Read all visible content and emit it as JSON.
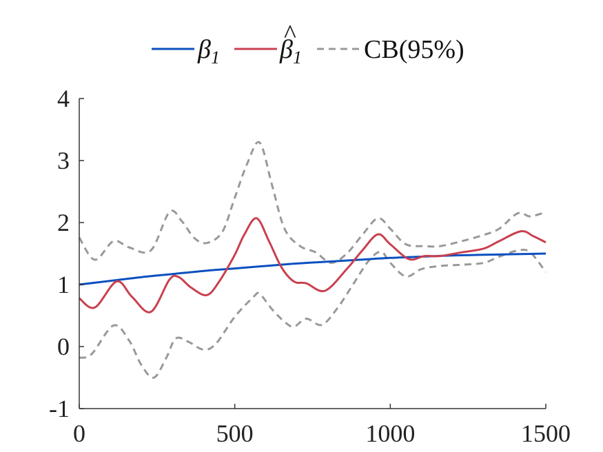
{
  "chart_data": {
    "type": "line",
    "title": "",
    "xlabel": "",
    "ylabel": "",
    "xlim": [
      0,
      1500
    ],
    "ylim": [
      -1,
      4
    ],
    "xticks": [
      0,
      500,
      1000,
      1500
    ],
    "yticks": [
      -1,
      0,
      1,
      2,
      3,
      4
    ],
    "xtick_labels": [
      "0",
      "500",
      "1000",
      "1500"
    ],
    "ytick_labels": [
      "-1",
      "0",
      "1",
      "2",
      "3",
      "4"
    ],
    "grid": false,
    "legend_position": "top-center",
    "legend": [
      {
        "symbol": "β",
        "subscript": "1",
        "hat": false,
        "color": "#0A4FBF",
        "dash": false
      },
      {
        "symbol": "β",
        "subscript": "1",
        "hat": true,
        "color": "#C9404F",
        "dash": false
      },
      {
        "label": "CB(95%)",
        "color": "#999999",
        "dash": true
      }
    ],
    "series": [
      {
        "key": "beta1",
        "color": "#0A4FBF",
        "dash": false,
        "x": [
          0,
          100,
          200,
          300,
          400,
          500,
          600,
          700,
          800,
          900,
          1000,
          1100,
          1200,
          1300,
          1400,
          1500
        ],
        "y": [
          1.0,
          1.06,
          1.12,
          1.17,
          1.22,
          1.26,
          1.3,
          1.34,
          1.37,
          1.4,
          1.43,
          1.45,
          1.47,
          1.48,
          1.49,
          1.5
        ]
      },
      {
        "key": "beta1_hat",
        "color": "#C9404F",
        "dash": false,
        "x": [
          0,
          50,
          120,
          170,
          230,
          290,
          320,
          360,
          410,
          450,
          500,
          530,
          570,
          610,
          650,
          690,
          730,
          790,
          860,
          910,
          960,
          1000,
          1060,
          1110,
          1160,
          1230,
          1300,
          1350,
          1420,
          1460,
          1500
        ],
        "y": [
          0.78,
          0.63,
          1.05,
          0.8,
          0.56,
          1.08,
          1.12,
          0.95,
          0.83,
          1.05,
          1.48,
          1.8,
          2.07,
          1.7,
          1.28,
          1.05,
          1.02,
          0.9,
          1.25,
          1.55,
          1.81,
          1.65,
          1.41,
          1.46,
          1.46,
          1.52,
          1.58,
          1.7,
          1.86,
          1.78,
          1.68
        ]
      },
      {
        "key": "cb_upper",
        "color": "#999999",
        "dash": true,
        "x": [
          0,
          50,
          110,
          160,
          230,
          290,
          330,
          370,
          410,
          460,
          500,
          540,
          580,
          620,
          660,
          710,
          760,
          810,
          860,
          910,
          960,
          1000,
          1050,
          1110,
          1160,
          1230,
          1300,
          1350,
          1410,
          1450,
          1500
        ],
        "y": [
          1.76,
          1.4,
          1.7,
          1.6,
          1.55,
          2.17,
          2.02,
          1.75,
          1.67,
          1.85,
          2.4,
          2.95,
          3.29,
          2.6,
          1.9,
          1.62,
          1.52,
          1.35,
          1.5,
          1.8,
          2.07,
          1.9,
          1.65,
          1.62,
          1.62,
          1.7,
          1.8,
          1.9,
          2.15,
          2.1,
          2.17
        ]
      },
      {
        "key": "cb_lower",
        "color": "#999999",
        "dash": true,
        "x": [
          0,
          40,
          110,
          160,
          200,
          240,
          280,
          310,
          350,
          400,
          440,
          500,
          560,
          580,
          620,
          660,
          690,
          730,
          780,
          830,
          880,
          930,
          970,
          1000,
          1050,
          1100,
          1160,
          1230,
          1300,
          1350,
          1410,
          1450,
          1500
        ],
        "y": [
          -0.18,
          -0.12,
          0.34,
          0.1,
          -0.3,
          -0.5,
          -0.18,
          0.13,
          0.08,
          -0.05,
          0.05,
          0.48,
          0.8,
          0.85,
          0.6,
          0.4,
          0.32,
          0.45,
          0.35,
          0.62,
          1.0,
          1.38,
          1.53,
          1.35,
          1.13,
          1.25,
          1.3,
          1.32,
          1.35,
          1.45,
          1.55,
          1.52,
          1.2
        ]
      }
    ]
  }
}
